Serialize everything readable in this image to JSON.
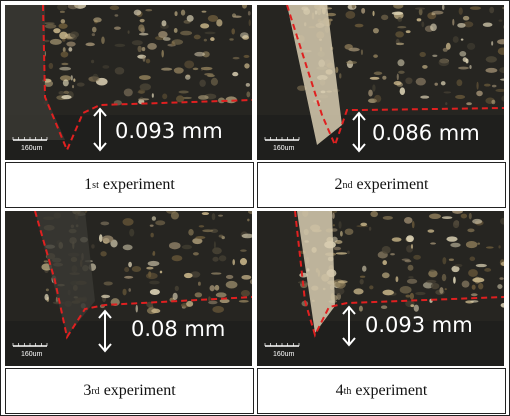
{
  "panels": [
    {
      "measurement": "0.093 mm",
      "scale_label": "160um",
      "caption": {
        "number": "1",
        "suffix": "st",
        "text": "experiment"
      }
    },
    {
      "measurement": "0.086 mm",
      "scale_label": "160um",
      "caption": {
        "number": "2",
        "suffix": "nd",
        "text": "experiment"
      }
    },
    {
      "measurement": "0.08 mm",
      "scale_label": "160um",
      "caption": {
        "number": "3",
        "suffix": "rd",
        "text": "experiment"
      }
    },
    {
      "measurement": "0.093 mm",
      "scale_label": "160um",
      "caption": {
        "number": "4",
        "suffix": "th",
        "text": "experiment"
      }
    }
  ]
}
